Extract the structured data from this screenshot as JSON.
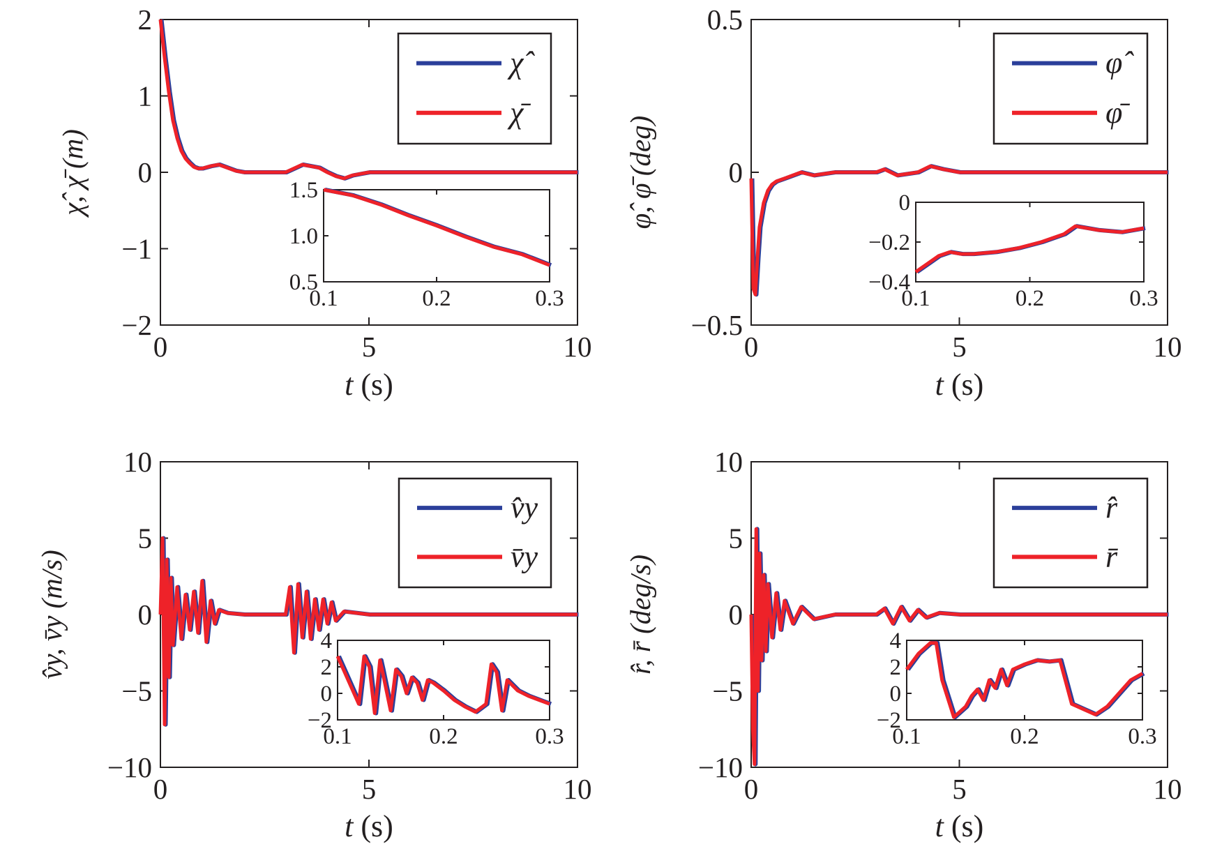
{
  "colors": {
    "estimate": "#2b3f9a",
    "reference": "#ee2229",
    "axis": "#231f20"
  },
  "chart_data": [
    {
      "type": "line",
      "ylabel": "χ̂, χ̄ (m)",
      "xlabel": {
        "var": "t",
        "unit": " (s)"
      },
      "xlim": [
        0,
        10
      ],
      "ylim": [
        -2,
        2
      ],
      "xticks": [
        "0",
        "5",
        "10"
      ],
      "yticks": [
        "−2",
        "−1",
        "0",
        "1",
        "2"
      ],
      "x": [
        0,
        0.1,
        0.2,
        0.3,
        0.4,
        0.5,
        0.6,
        0.7,
        0.8,
        0.9,
        1.0,
        1.2,
        1.4,
        1.6,
        1.8,
        2.0,
        2.5,
        3.0,
        3.2,
        3.4,
        3.6,
        3.8,
        4.0,
        4.2,
        4.4,
        4.6,
        4.8,
        5.0,
        6.0,
        7.0,
        8.0,
        9.0,
        10.0
      ],
      "series": [
        {
          "name": "χ̂",
          "values": [
            2.0,
            1.5,
            1.05,
            0.68,
            0.45,
            0.28,
            0.18,
            0.12,
            0.07,
            0.05,
            0.05,
            0.08,
            0.1,
            0.06,
            0.02,
            0.0,
            0.0,
            0.0,
            0.05,
            0.1,
            0.08,
            0.06,
            0.0,
            -0.05,
            -0.08,
            -0.04,
            -0.02,
            0.0,
            0.0,
            0.0,
            0.0,
            0.0,
            0.0
          ]
        },
        {
          "name": "χ̄",
          "values": [
            2.0,
            1.5,
            1.05,
            0.68,
            0.45,
            0.28,
            0.18,
            0.12,
            0.07,
            0.05,
            0.05,
            0.08,
            0.1,
            0.06,
            0.02,
            0.0,
            0.0,
            0.0,
            0.05,
            0.1,
            0.08,
            0.06,
            0.0,
            -0.05,
            -0.08,
            -0.04,
            -0.02,
            0.0,
            0.0,
            0.0,
            0.0,
            0.0,
            0.0
          ]
        }
      ],
      "legend": {
        "position": "top-right",
        "entries": [
          "χ̂",
          "χ̄"
        ]
      },
      "inset": {
        "xlim": [
          0.1,
          0.3
        ],
        "ylim": [
          0.5,
          1.5
        ],
        "xticks": [
          "0.1",
          "0.2",
          "0.3"
        ],
        "yticks": [
          "0.5",
          "1.0",
          "1.5"
        ],
        "x": [
          0.1,
          0.125,
          0.15,
          0.175,
          0.2,
          0.225,
          0.25,
          0.275,
          0.3
        ],
        "values": [
          1.55,
          1.44,
          1.34,
          1.22,
          1.11,
          0.99,
          0.88,
          0.8,
          0.68
        ]
      }
    },
    {
      "type": "line",
      "ylabel": "φ̂, φ̄ (deg)",
      "xlabel": {
        "var": "t",
        "unit": " (s)"
      },
      "xlim": [
        0,
        10
      ],
      "ylim": [
        -0.5,
        0.5
      ],
      "xticks": [
        "0",
        "5",
        "10"
      ],
      "yticks": [
        "−0.5",
        "0",
        "0.5"
      ],
      "x": [
        0,
        0.05,
        0.1,
        0.15,
        0.2,
        0.3,
        0.4,
        0.5,
        0.6,
        0.8,
        1.0,
        1.2,
        1.5,
        2.0,
        2.5,
        3.0,
        3.2,
        3.5,
        4.0,
        4.3,
        4.6,
        5.0,
        6.0,
        7.0,
        8.0,
        10.0
      ],
      "series": [
        {
          "name": "φ̂",
          "values": [
            -0.02,
            -0.38,
            -0.4,
            -0.28,
            -0.18,
            -0.1,
            -0.06,
            -0.04,
            -0.03,
            -0.02,
            -0.01,
            0.0,
            -0.01,
            0.0,
            0.0,
            0.0,
            0.01,
            -0.01,
            0.0,
            0.02,
            0.01,
            0.0,
            0.0,
            0.0,
            0.0,
            0.0
          ]
        },
        {
          "name": "φ̄",
          "values": [
            -0.02,
            -0.38,
            -0.4,
            -0.28,
            -0.18,
            -0.1,
            -0.06,
            -0.04,
            -0.03,
            -0.02,
            -0.01,
            0.0,
            -0.01,
            0.0,
            0.0,
            0.0,
            0.01,
            -0.01,
            0.0,
            0.02,
            0.01,
            0.0,
            0.0,
            0.0,
            0.0,
            0.0
          ]
        }
      ],
      "legend": {
        "position": "top-right",
        "entries": [
          "φ̂",
          "φ̄"
        ]
      },
      "inset": {
        "xlim": [
          0.1,
          0.3
        ],
        "ylim": [
          -0.4,
          0
        ],
        "xticks": [
          "0.1",
          "0.2",
          "0.3"
        ],
        "yticks": [
          "−0.4",
          "−0.2",
          "0"
        ],
        "x": [
          0.1,
          0.11,
          0.12,
          0.13,
          0.14,
          0.15,
          0.17,
          0.19,
          0.21,
          0.23,
          0.24,
          0.26,
          0.28,
          0.3
        ],
        "values": [
          -0.35,
          -0.31,
          -0.27,
          -0.25,
          -0.26,
          -0.26,
          -0.25,
          -0.23,
          -0.2,
          -0.16,
          -0.12,
          -0.14,
          -0.15,
          -0.13
        ]
      }
    },
    {
      "type": "line",
      "ylabel": "v̂y, v̄y (m/s)",
      "xlabel": {
        "var": "t",
        "unit": " (s)"
      },
      "xlim": [
        0,
        10
      ],
      "ylim": [
        -10,
        10
      ],
      "xticks": [
        "0",
        "5",
        "10"
      ],
      "yticks": [
        "−10",
        "−5",
        "0",
        "5",
        "10"
      ],
      "x": [
        0,
        0.05,
        0.1,
        0.15,
        0.2,
        0.25,
        0.3,
        0.4,
        0.5,
        0.6,
        0.7,
        0.8,
        0.9,
        1.0,
        1.1,
        1.2,
        1.3,
        1.4,
        1.6,
        2.0,
        2.5,
        3.0,
        3.1,
        3.2,
        3.3,
        3.4,
        3.5,
        3.6,
        3.7,
        3.8,
        3.9,
        4.0,
        4.1,
        4.2,
        4.4,
        5.0,
        6.0,
        8.0,
        10.0
      ],
      "series": [
        {
          "name": "v̂y",
          "values": [
            0.0,
            5.0,
            -7.2,
            3.6,
            -4.1,
            2.4,
            -2.0,
            1.8,
            -1.6,
            1.3,
            -1.0,
            1.5,
            -1.2,
            2.2,
            -1.8,
            0.9,
            -0.6,
            0.3,
            0.1,
            0.0,
            0.0,
            0.0,
            1.8,
            -2.5,
            2.0,
            -1.5,
            1.5,
            -1.6,
            1.0,
            -1.0,
            1.0,
            -0.6,
            0.8,
            -0.4,
            0.2,
            0.0,
            0.0,
            0.0,
            0.0
          ]
        },
        {
          "name": "v̄y",
          "values": [
            0.0,
            5.0,
            -7.2,
            3.6,
            -4.1,
            2.4,
            -2.0,
            1.8,
            -1.6,
            1.3,
            -1.0,
            1.5,
            -1.2,
            2.2,
            -1.8,
            0.9,
            -0.6,
            0.3,
            0.1,
            0.0,
            0.0,
            0.0,
            1.8,
            -2.5,
            2.0,
            -1.5,
            1.5,
            -1.6,
            1.0,
            -1.0,
            1.0,
            -0.6,
            0.8,
            -0.4,
            0.2,
            0.0,
            0.0,
            0.0,
            0.0
          ]
        }
      ],
      "legend": {
        "position": "top-right",
        "entries": [
          "v̂y",
          "v̄y"
        ]
      },
      "inset": {
        "xlim": [
          0.1,
          0.3
        ],
        "ylim": [
          -2,
          4
        ],
        "xticks": [
          "0.1",
          "0.2",
          "0.3"
        ],
        "yticks": [
          "−2",
          "0",
          "2",
          "4"
        ],
        "x": [
          0.1,
          0.12,
          0.125,
          0.13,
          0.135,
          0.14,
          0.142,
          0.15,
          0.155,
          0.16,
          0.165,
          0.17,
          0.175,
          0.18,
          0.185,
          0.19,
          0.2,
          0.21,
          0.22,
          0.23,
          0.24,
          0.245,
          0.25,
          0.255,
          0.26,
          0.265,
          0.27,
          0.28,
          0.29,
          0.3
        ],
        "values": [
          2.8,
          -0.8,
          2.8,
          2.0,
          -1.5,
          2.5,
          1.8,
          -1.3,
          1.8,
          1.3,
          0.0,
          1.2,
          0.8,
          -0.5,
          1.0,
          0.8,
          0.2,
          -0.5,
          -1.0,
          -1.4,
          -0.8,
          2.2,
          1.6,
          -1.3,
          1.0,
          0.6,
          0.2,
          -0.2,
          -0.5,
          -0.8
        ]
      }
    },
    {
      "type": "line",
      "ylabel": "r̂, r̄ (deg/s)",
      "xlabel": {
        "var": "t",
        "unit": " (s)"
      },
      "xlim": [
        0,
        10
      ],
      "ylim": [
        -10,
        10
      ],
      "xticks": [
        "0",
        "5",
        "10"
      ],
      "yticks": [
        "−10",
        "−5",
        "0",
        "5",
        "10"
      ],
      "x": [
        0,
        0.04,
        0.08,
        0.12,
        0.16,
        0.2,
        0.25,
        0.3,
        0.35,
        0.4,
        0.5,
        0.6,
        0.7,
        0.8,
        1.0,
        1.2,
        1.5,
        2.0,
        3.0,
        3.2,
        3.4,
        3.6,
        3.8,
        4.0,
        4.2,
        4.5,
        5.0,
        6.0,
        8.0,
        10.0
      ],
      "series": [
        {
          "name": "r̂",
          "values": [
            0.0,
            -7.5,
            -9.8,
            5.6,
            -5.0,
            4.0,
            -3.0,
            2.6,
            -2.4,
            2.0,
            -1.5,
            1.4,
            -1.0,
            0.9,
            -0.6,
            0.5,
            -0.3,
            0.0,
            0.0,
            0.4,
            -0.6,
            0.5,
            -0.4,
            0.3,
            -0.2,
            0.1,
            0.0,
            0.0,
            0.0,
            0.0
          ]
        },
        {
          "name": "r̄",
          "values": [
            0.0,
            -7.5,
            -9.8,
            5.6,
            -5.0,
            4.0,
            -3.0,
            2.6,
            -2.4,
            2.0,
            -1.5,
            1.4,
            -1.0,
            0.9,
            -0.6,
            0.5,
            -0.3,
            0.0,
            0.0,
            0.4,
            -0.6,
            0.5,
            -0.4,
            0.3,
            -0.2,
            0.1,
            0.0,
            0.0,
            0.0,
            0.0
          ]
        }
      ],
      "legend": {
        "position": "top-right",
        "entries": [
          "r̂",
          "r̄"
        ]
      },
      "inset": {
        "xlim": [
          0.1,
          0.3
        ],
        "ylim": [
          -2,
          4
        ],
        "xticks": [
          "0.1",
          "0.2",
          "0.3"
        ],
        "yticks": [
          "−2",
          "0",
          "2",
          "4"
        ],
        "x": [
          0.1,
          0.11,
          0.12,
          0.125,
          0.13,
          0.14,
          0.15,
          0.155,
          0.16,
          0.165,
          0.17,
          0.175,
          0.18,
          0.185,
          0.19,
          0.2,
          0.21,
          0.22,
          0.23,
          0.24,
          0.25,
          0.26,
          0.27,
          0.28,
          0.29,
          0.3
        ],
        "values": [
          1.8,
          3.0,
          3.8,
          3.8,
          1.0,
          -1.8,
          -1.0,
          -0.2,
          0.3,
          -0.5,
          1.0,
          0.4,
          1.8,
          0.6,
          1.8,
          2.2,
          2.5,
          2.4,
          2.5,
          -0.8,
          -1.2,
          -1.6,
          -1.0,
          0.0,
          1.0,
          1.5
        ]
      }
    }
  ]
}
